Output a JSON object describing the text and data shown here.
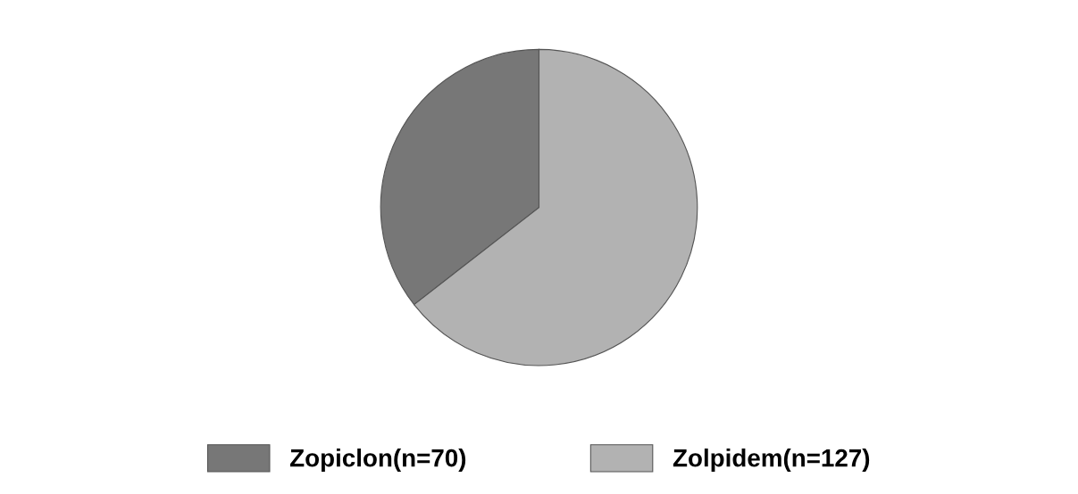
{
  "chart_data": {
    "type": "pie",
    "categories": [
      "Zopiclon(n=70)",
      "Zolpidem(n=127)"
    ],
    "values": [
      70,
      127
    ],
    "colors": [
      "#777777",
      "#b2b2b2"
    ],
    "legend": "bottom"
  }
}
